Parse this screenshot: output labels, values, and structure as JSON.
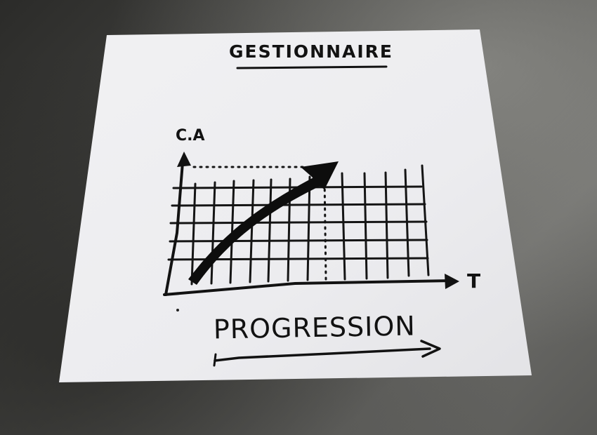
{
  "sheet": {
    "title": "GESTIONNAIRE",
    "y_axis_label": "C.A",
    "x_axis_label": "T",
    "caption": "PROGRESSION"
  }
}
